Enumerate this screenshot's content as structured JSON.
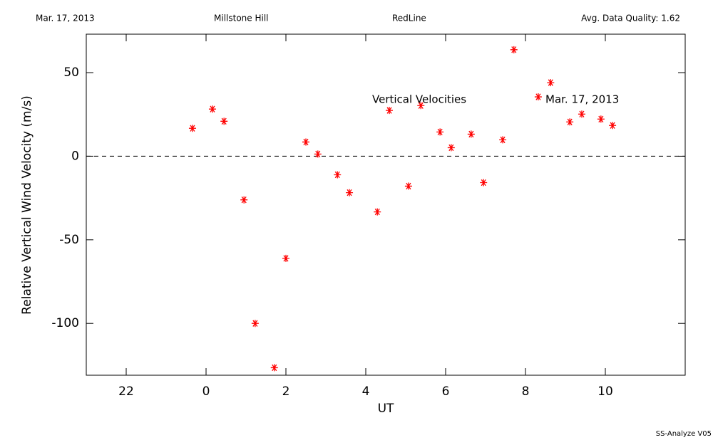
{
  "chart_data": {
    "type": "scatter",
    "header": [
      "Mar. 17, 2013",
      "Millstone Hill",
      "RedLine",
      "Avg. Data Quality: 1.62"
    ],
    "annotations": [
      "Vertical Velocities",
      "Mar. 17, 2013"
    ],
    "footer": "SS-Analyze V05",
    "xlabel": "UT",
    "ylabel": "Relative Vertical Wind Velocity (m/s)",
    "xlim": [
      -3,
      12
    ],
    "ylim": [
      -131,
      73
    ],
    "xticks": [
      {
        "value": -2,
        "label": "22"
      },
      0,
      2,
      4,
      6,
      8,
      10
    ],
    "yticks": [
      -100,
      -50,
      0,
      50
    ],
    "reference_line": 0,
    "series": [
      {
        "color": "#ff0000",
        "x": [
          -0.34,
          0.16,
          0.45,
          0.95,
          1.23,
          1.71,
          2.0,
          2.5,
          2.8,
          3.29,
          3.59,
          4.29,
          4.59,
          5.07,
          5.38,
          5.86,
          6.14,
          6.64,
          6.95,
          7.43,
          7.71,
          8.32,
          8.63,
          9.11,
          9.41,
          9.89,
          10.18
        ],
        "values": [
          16.7,
          28.2,
          20.9,
          -26.1,
          -100,
          -126.5,
          -61.1,
          8.5,
          1.3,
          -11.1,
          -21.8,
          -33.3,
          27.4,
          -17.9,
          30.3,
          14.5,
          5.1,
          13.2,
          -15.8,
          9.8,
          63.7,
          35.5,
          44.0,
          20.5,
          25.2,
          22.2,
          18.4
        ]
      }
    ]
  }
}
